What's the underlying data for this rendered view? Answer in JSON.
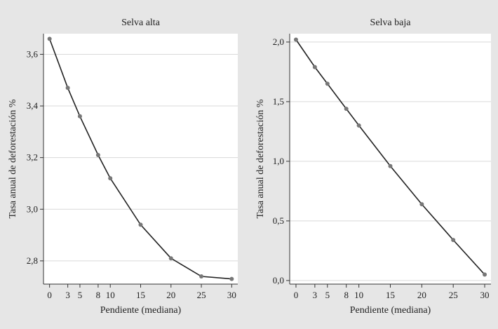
{
  "colors": {
    "background": "#e6e6e6",
    "plot_area": "#ffffff",
    "gridline": "#d9d9d9",
    "line": "#222222",
    "marker": "#777777"
  },
  "chart_data": [
    {
      "type": "line",
      "title": "Selva alta",
      "xlabel": "Pendiente (mediana)",
      "ylabel": "Tasa anual de deforestación %",
      "x": [
        0,
        3,
        5,
        8,
        10,
        15,
        20,
        25,
        30
      ],
      "x_tick_labels": [
        "0",
        "3",
        "5",
        "8",
        "10",
        "15",
        "20",
        "25",
        "30"
      ],
      "y_tick_values": [
        2.8,
        3.0,
        3.2,
        3.4,
        3.6
      ],
      "y_tick_labels": [
        "2,8",
        "3,0",
        "3,2",
        "3,4",
        "3,6"
      ],
      "series": [
        {
          "values": [
            3.66,
            3.47,
            3.36,
            3.21,
            3.12,
            2.94,
            2.81,
            2.74,
            2.73
          ]
        }
      ],
      "xlim": [
        -1,
        31
      ],
      "ylim": [
        2.71,
        3.68
      ],
      "grid": "horizontal"
    },
    {
      "type": "line",
      "title": "Selva baja",
      "xlabel": "Pendiente (mediana)",
      "ylabel": "Tasa anual de deforestación %",
      "x": [
        0,
        3,
        5,
        8,
        10,
        15,
        20,
        25,
        30
      ],
      "x_tick_labels": [
        "0",
        "3",
        "5",
        "8",
        "10",
        "15",
        "20",
        "25",
        "30"
      ],
      "y_tick_values": [
        0.0,
        0.5,
        1.0,
        1.5,
        2.0
      ],
      "y_tick_labels": [
        "0,0",
        "0,5",
        "1,0",
        "1,5",
        "2,0"
      ],
      "series": [
        {
          "values": [
            2.02,
            1.79,
            1.65,
            1.44,
            1.3,
            0.96,
            0.64,
            0.34,
            0.05
          ]
        }
      ],
      "xlim": [
        -1,
        31
      ],
      "ylim": [
        -0.03,
        2.07
      ],
      "grid": "horizontal"
    }
  ]
}
